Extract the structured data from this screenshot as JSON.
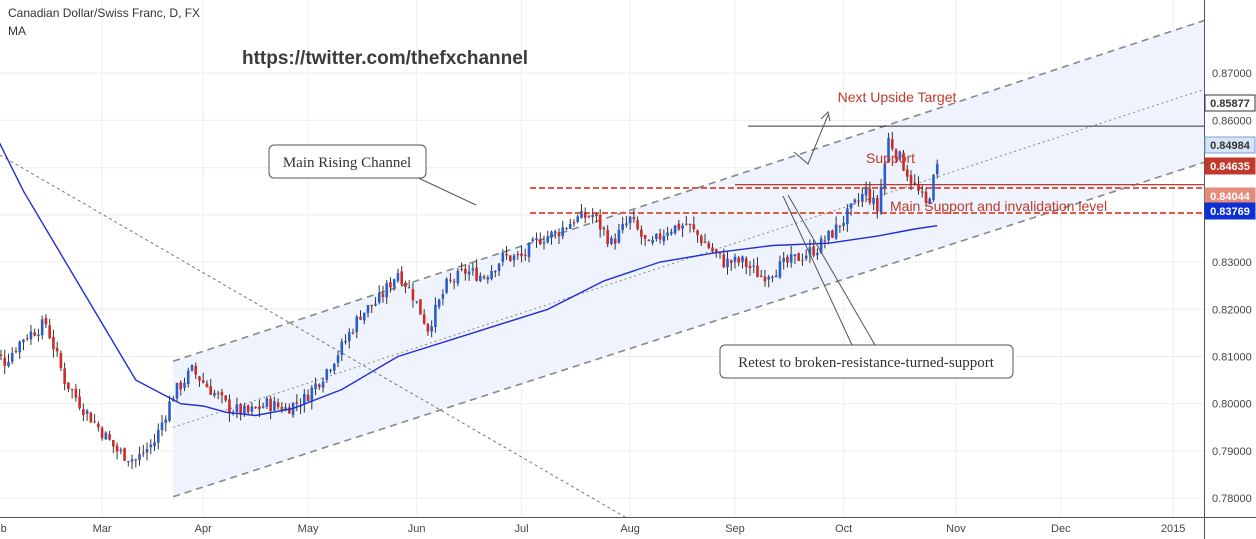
{
  "header": {
    "title": "Canadian Dollar/Swiss Franc, D, FX",
    "indicator": "MA",
    "watermark": "https://twitter.com/thefxchannel"
  },
  "chart_data": {
    "type": "candlestick",
    "y_range": [
      0.776,
      0.8855
    ],
    "y_ticks": [
      "0.87000",
      "0.86000",
      "0.85000",
      "0.84000",
      "0.83000",
      "0.82000",
      "0.81000",
      "0.80000",
      "0.79000",
      "0.78000"
    ],
    "x_ticks": [
      "Feb",
      "Mar",
      "Apr",
      "May",
      "Jun",
      "Jul",
      "Aug",
      "Sep",
      "Oct",
      "Nov",
      "Dec",
      "2015"
    ],
    "close_path": [
      [
        0,
        0.812
      ],
      [
        5,
        0.809
      ],
      [
        10,
        0.814
      ],
      [
        16,
        0.817
      ],
      [
        21,
        0.805
      ],
      [
        26,
        0.799
      ],
      [
        31,
        0.794
      ],
      [
        35,
        0.79
      ],
      [
        40,
        0.788
      ],
      [
        45,
        0.792
      ],
      [
        50,
        0.802
      ],
      [
        55,
        0.807
      ],
      [
        60,
        0.803
      ],
      [
        65,
        0.799
      ],
      [
        70,
        0.798
      ],
      [
        75,
        0.8
      ],
      [
        80,
        0.799
      ],
      [
        85,
        0.801
      ],
      [
        90,
        0.806
      ],
      [
        95,
        0.812
      ],
      [
        100,
        0.819
      ],
      [
        105,
        0.822
      ],
      [
        110,
        0.828
      ],
      [
        114,
        0.823
      ],
      [
        118,
        0.816
      ],
      [
        123,
        0.825
      ],
      [
        128,
        0.828
      ],
      [
        133,
        0.827
      ],
      [
        138,
        0.831
      ],
      [
        143,
        0.831
      ],
      [
        148,
        0.835
      ],
      [
        152,
        0.836
      ],
      [
        157,
        0.839
      ],
      [
        162,
        0.84
      ],
      [
        167,
        0.834
      ],
      [
        172,
        0.839
      ],
      [
        177,
        0.833
      ],
      [
        182,
        0.837
      ],
      [
        187,
        0.838
      ],
      [
        192,
        0.834
      ],
      [
        197,
        0.83
      ],
      [
        202,
        0.83
      ],
      [
        207,
        0.827
      ],
      [
        212,
        0.829
      ],
      [
        217,
        0.831
      ],
      [
        222,
        0.833
      ],
      [
        227,
        0.837
      ],
      [
        232,
        0.842
      ],
      [
        235,
        0.845
      ],
      [
        238,
        0.841
      ],
      [
        241,
        0.856
      ],
      [
        244,
        0.852
      ],
      [
        248,
        0.846
      ],
      [
        251,
        0.842
      ],
      [
        254,
        0.85
      ]
    ],
    "moving_average": [
      [
        0,
        0.861
      ],
      [
        10,
        0.845
      ],
      [
        25,
        0.825
      ],
      [
        40,
        0.805
      ],
      [
        52,
        0.8
      ],
      [
        58,
        0.7995
      ],
      [
        64,
        0.7982
      ],
      [
        72,
        0.7975
      ],
      [
        82,
        0.799
      ],
      [
        95,
        0.803
      ],
      [
        110,
        0.81
      ],
      [
        130,
        0.815
      ],
      [
        150,
        0.82
      ],
      [
        165,
        0.826
      ],
      [
        180,
        0.83
      ],
      [
        195,
        0.832
      ],
      [
        210,
        0.8335
      ],
      [
        225,
        0.834
      ],
      [
        238,
        0.8355
      ],
      [
        248,
        0.837
      ],
      [
        254,
        0.8377
      ]
    ],
    "channel": {
      "upper": [
        [
          50,
          0.809
        ],
        [
          380,
          0.8955
        ]
      ],
      "middle": [
        [
          50,
          0.795
        ],
        [
          380,
          0.8808
        ]
      ],
      "lower": [
        [
          50,
          0.7803
        ],
        [
          380,
          0.8652
        ]
      ]
    },
    "price_levels": [
      {
        "label": "0.85877",
        "value": 0.8588,
        "color": "#ffffff",
        "text_color": "#333333",
        "border": "#333333"
      },
      {
        "label": "0.84984",
        "value": 0.8498,
        "color": "#d6e4f7",
        "text_color": "#333333",
        "border": "#7a9fd8"
      },
      {
        "label": "0.84635",
        "value": 0.8464,
        "color": "#c0392b",
        "text_color": "#ffffff",
        "border": "#c0392b"
      },
      {
        "label": "0.84044",
        "value": 0.8404,
        "color": "#e68a7a",
        "text_color": "#ffffff",
        "border": "#e68a7a"
      },
      {
        "label": "0.83769",
        "value": 0.8377,
        "color": "#0d2fd3",
        "text_color": "#ffffff",
        "border": "#0d2fd3"
      }
    ],
    "annotations": {
      "target": "Next Upside Target",
      "support": "Support",
      "main_support": "Main Support and invalidation level",
      "channel": "Main Rising Channel",
      "retest": "Retest to broken-resistance-turned-support"
    },
    "colors": {
      "up": "#2a5ecf",
      "down": "#cf2a27",
      "ma": "#1f2fd0",
      "channel_fill": "#eef3fd",
      "channel_line": "#888888",
      "support_red": "#c0392b",
      "main_support_red": "#de5b4a",
      "grid": "#eeeeee"
    }
  }
}
